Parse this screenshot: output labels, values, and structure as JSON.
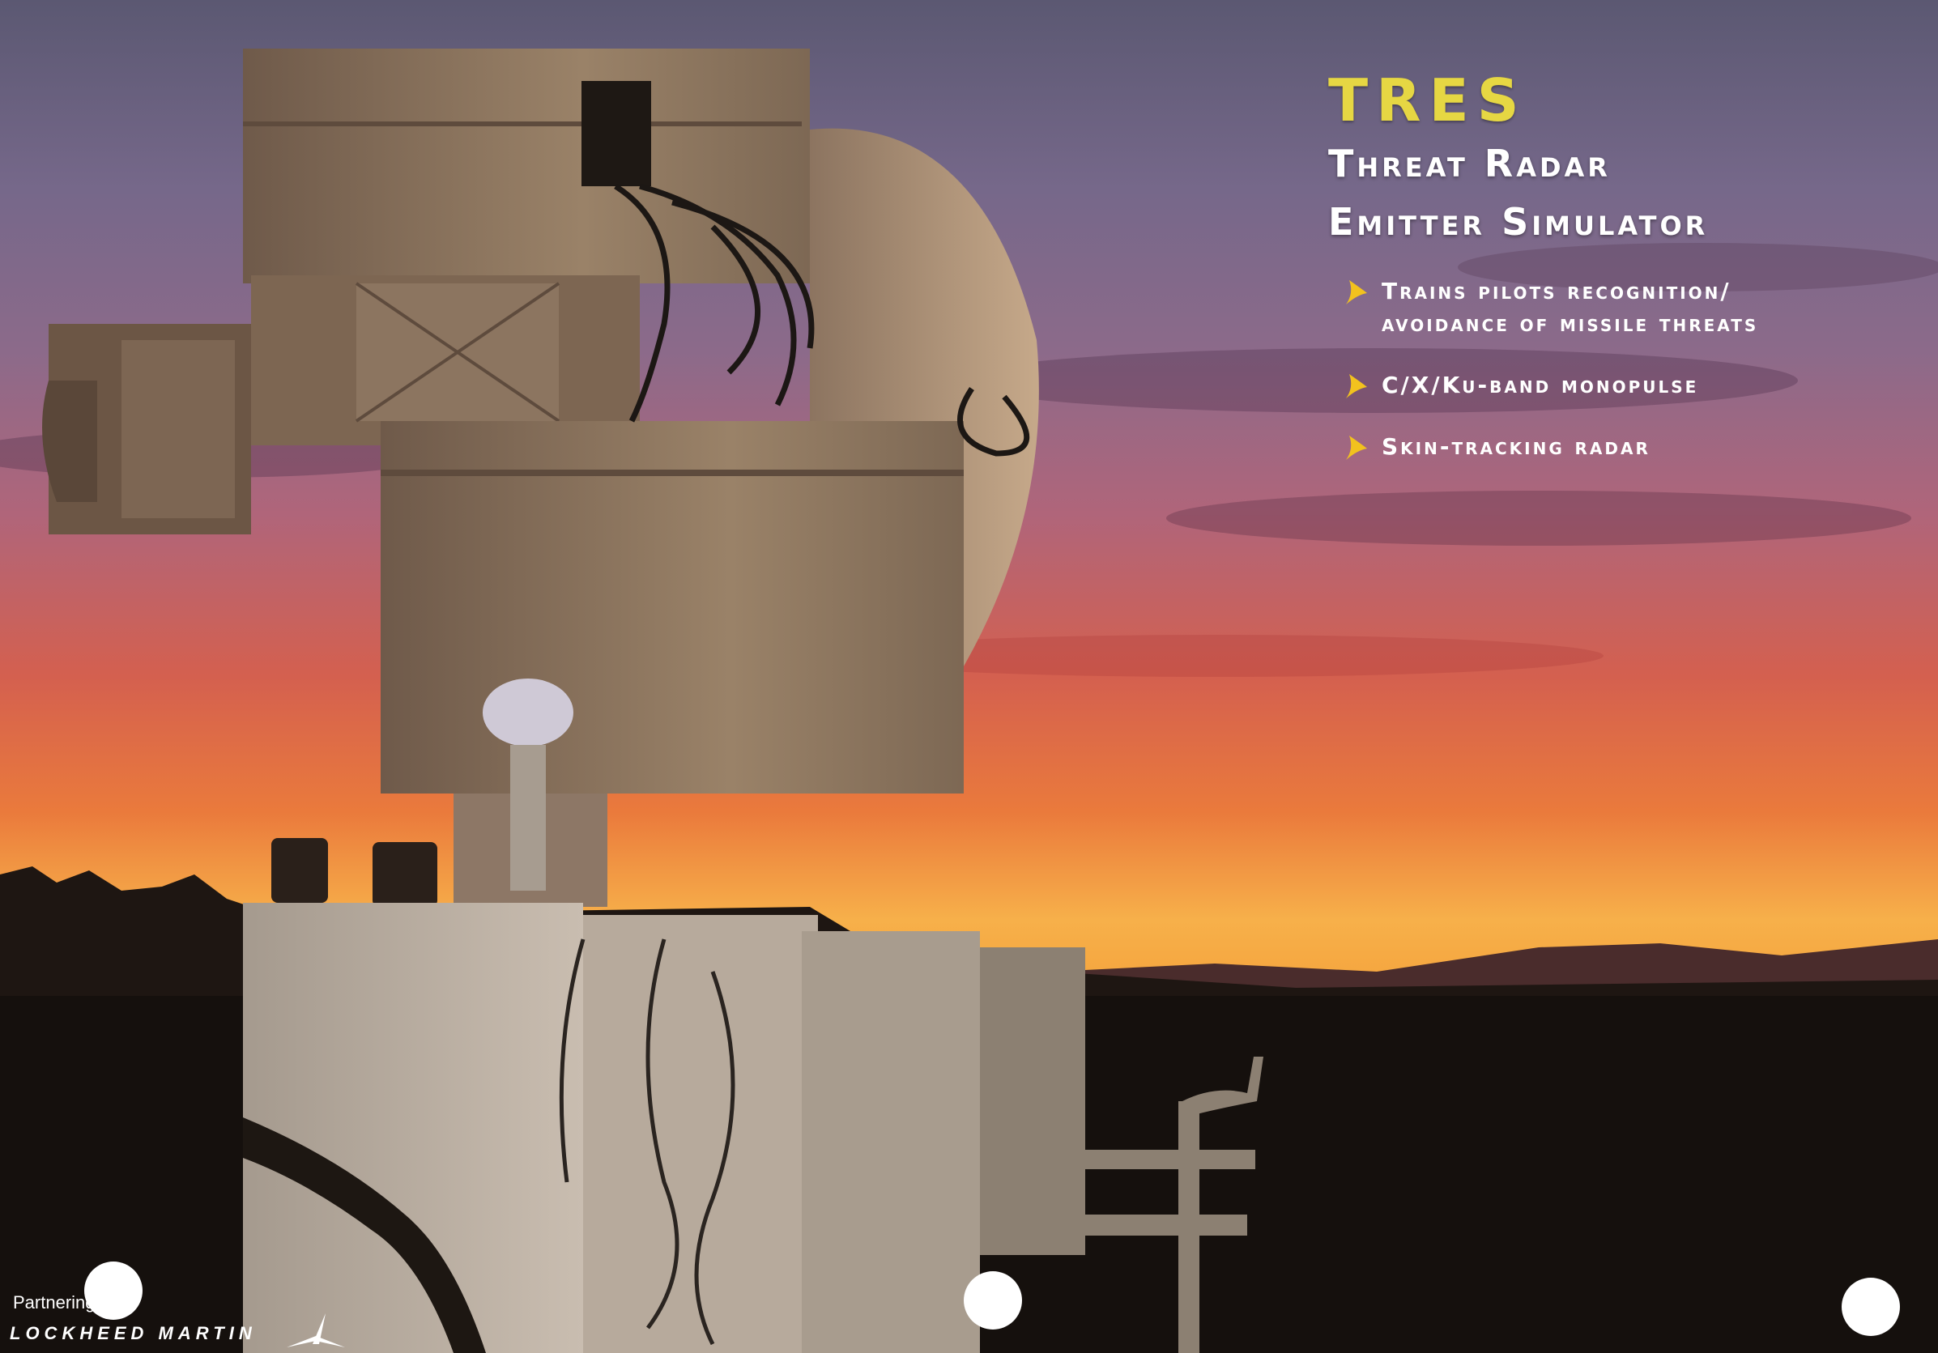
{
  "header": {
    "acronym": "TRES",
    "subtitle_line1": "Threat Radar",
    "subtitle_line2": "Emitter Simulator"
  },
  "bullets": [
    {
      "text": "Trains pilots recognition/\navoidance of missile threats"
    },
    {
      "text": "C/X/Ku-band monopulse"
    },
    {
      "text": "Skin-tracking radar"
    }
  ],
  "footer": {
    "partner_label": "Partnering with:",
    "logo_text": "LOCKHEED MARTIN"
  },
  "colors": {
    "acronym": "#e6d743",
    "text": "#ffffff",
    "bullet_arrow": "#f2c21e"
  }
}
